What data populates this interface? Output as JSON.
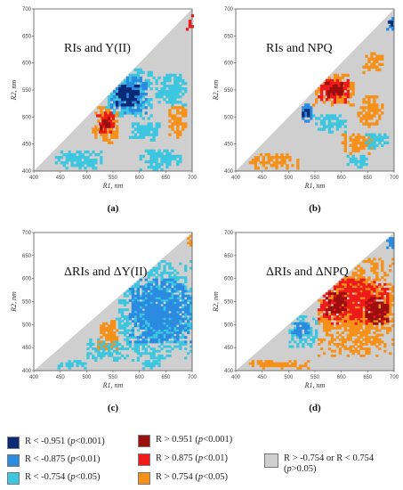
{
  "chart_data": [
    {
      "type": "heatmap",
      "panel_label": "(a)",
      "title": "RIs and Y(II)",
      "xlabel": "R1, nm",
      "ylabel": "R2, nm",
      "xlim": [
        400,
        700
      ],
      "ylim": [
        400,
        700
      ],
      "xticks": [
        400,
        450,
        500,
        550,
        600,
        650,
        700
      ],
      "yticks": [
        400,
        450,
        500,
        550,
        600,
        650,
        700
      ],
      "regions": [
        {
          "category": "neg3",
          "x": [
            555,
            598
          ],
          "y": [
            515,
            560
          ]
        },
        {
          "category": "neg2",
          "x": [
            545,
            612
          ],
          "y": [
            505,
            575
          ]
        },
        {
          "category": "neg1",
          "x": [
            530,
            625
          ],
          "y": [
            495,
            590
          ]
        },
        {
          "category": "neg1",
          "x": [
            600,
            680
          ],
          "y": [
            400,
            440
          ]
        },
        {
          "category": "neg1",
          "x": [
            440,
            530
          ],
          "y": [
            403,
            435
          ]
        },
        {
          "category": "neg1",
          "x": [
            625,
            690
          ],
          "y": [
            520,
            580
          ]
        },
        {
          "category": "neg1",
          "x": [
            580,
            640
          ],
          "y": [
            455,
            490
          ]
        },
        {
          "category": "pos1",
          "x": [
            510,
            560
          ],
          "y": [
            450,
            520
          ]
        },
        {
          "category": "pos2",
          "x": [
            518,
            552
          ],
          "y": [
            465,
            510
          ]
        },
        {
          "category": "pos3",
          "x": [
            525,
            545
          ],
          "y": [
            475,
            500
          ]
        },
        {
          "category": "pos1",
          "x": [
            655,
            690
          ],
          "y": [
            460,
            520
          ]
        },
        {
          "category": "pos2",
          "x": [
            688,
            700
          ],
          "y": [
            660,
            690
          ]
        },
        {
          "category": "pos3",
          "x": [
            692,
            699
          ],
          "y": [
            670,
            682
          ]
        }
      ]
    },
    {
      "type": "heatmap",
      "panel_label": "(b)",
      "title": "RIs and NPQ",
      "xlabel": "R1, nm",
      "ylabel": "R2, nm",
      "xlim": [
        400,
        700
      ],
      "ylim": [
        400,
        700
      ],
      "xticks": [
        400,
        450,
        500,
        550,
        600,
        650,
        700
      ],
      "yticks": [
        400,
        450,
        500,
        550,
        600,
        650,
        700
      ],
      "regions": [
        {
          "category": "pos1",
          "x": [
            545,
            625
          ],
          "y": [
            520,
            580
          ]
        },
        {
          "category": "pos2",
          "x": [
            555,
            615
          ],
          "y": [
            525,
            570
          ]
        },
        {
          "category": "pos3",
          "x": [
            568,
            600
          ],
          "y": [
            535,
            562
          ]
        },
        {
          "category": "pos1",
          "x": [
            630,
            680
          ],
          "y": [
            480,
            540
          ]
        },
        {
          "category": "pos1",
          "x": [
            420,
            520
          ],
          "y": [
            403,
            430
          ]
        },
        {
          "category": "pos1",
          "x": [
            600,
            660
          ],
          "y": [
            430,
            470
          ]
        },
        {
          "category": "pos1",
          "x": [
            640,
            680
          ],
          "y": [
            580,
            620
          ]
        },
        {
          "category": "neg2",
          "x": [
            520,
            545
          ],
          "y": [
            490,
            525
          ]
        },
        {
          "category": "neg3",
          "x": [
            525,
            540
          ],
          "y": [
            500,
            515
          ]
        },
        {
          "category": "neg1",
          "x": [
            545,
            610
          ],
          "y": [
            470,
            505
          ]
        },
        {
          "category": "neg1",
          "x": [
            640,
            690
          ],
          "y": [
            440,
            470
          ]
        },
        {
          "category": "neg2",
          "x": [
            685,
            700
          ],
          "y": [
            655,
            682
          ]
        },
        {
          "category": "neg3",
          "x": [
            688,
            696
          ],
          "y": [
            668,
            678
          ]
        },
        {
          "category": "neg1",
          "x": [
            610,
            650
          ],
          "y": [
            405,
            430
          ]
        }
      ]
    },
    {
      "type": "heatmap",
      "panel_label": "(c)",
      "title": "ΔRIs and ΔY(II)",
      "xlabel": "R1, nm",
      "ylabel": "R2, nm",
      "xlim": [
        400,
        700
      ],
      "ylim": [
        400,
        700
      ],
      "xticks": [
        400,
        450,
        500,
        550,
        600,
        650,
        700
      ],
      "yticks": [
        400,
        450,
        500,
        550,
        600,
        650,
        700
      ],
      "regions": [
        {
          "category": "neg1",
          "x": [
            555,
            700
          ],
          "y": [
            420,
            640
          ]
        },
        {
          "category": "neg2",
          "x": [
            580,
            700
          ],
          "y": [
            460,
            600
          ]
        },
        {
          "category": "neg1",
          "x": [
            500,
            560
          ],
          "y": [
            420,
            470
          ]
        },
        {
          "category": "neg1",
          "x": [
            440,
            500
          ],
          "y": [
            403,
            420
          ]
        },
        {
          "category": "pos1",
          "x": [
            520,
            560
          ],
          "y": [
            445,
            510
          ]
        },
        {
          "category": "pos1",
          "x": [
            690,
            700
          ],
          "y": [
            665,
            695
          ]
        },
        {
          "category": "neg1",
          "x": [
            600,
            640
          ],
          "y": [
            403,
            420
          ]
        }
      ]
    },
    {
      "type": "heatmap",
      "panel_label": "(d)",
      "title": "ΔRIs and ΔNPQ",
      "xlabel": "R1, nm",
      "ylabel": "R2, nm",
      "xlim": [
        400,
        700
      ],
      "ylim": [
        400,
        700
      ],
      "xticks": [
        400,
        450,
        500,
        550,
        600,
        650,
        700
      ],
      "yticks": [
        400,
        450,
        500,
        550,
        600,
        650,
        700
      ],
      "regions": [
        {
          "category": "pos1",
          "x": [
            555,
            700
          ],
          "y": [
            430,
            650
          ]
        },
        {
          "category": "pos2",
          "x": [
            555,
            690
          ],
          "y": [
            500,
            600
          ]
        },
        {
          "category": "pos3",
          "x": [
            570,
            610
          ],
          "y": [
            520,
            570
          ]
        },
        {
          "category": "pos3",
          "x": [
            640,
            690
          ],
          "y": [
            500,
            560
          ]
        },
        {
          "category": "neg1",
          "x": [
            500,
            555
          ],
          "y": [
            450,
            520
          ]
        },
        {
          "category": "neg2",
          "x": [
            505,
            540
          ],
          "y": [
            470,
            505
          ]
        },
        {
          "category": "pos1",
          "x": [
            420,
            540
          ],
          "y": [
            403,
            420
          ]
        },
        {
          "category": "neg2",
          "x": [
            685,
            700
          ],
          "y": [
            660,
            690
          ]
        },
        {
          "category": "neg3",
          "x": [
            690,
            697
          ],
          "y": [
            670,
            680
          ]
        }
      ]
    }
  ],
  "legend": {
    "colors": {
      "neg3": "#0a2a78",
      "neg2": "#2b8be0",
      "neg1": "#3cc6df",
      "pos3": "#9c0f0f",
      "pos2": "#ee1b1b",
      "pos1": "#f59018",
      "gray": "#cfcfcf"
    },
    "neg3": {
      "text": "R < -0.951 (",
      "p": "p",
      "rest": "<0.001)"
    },
    "neg2": {
      "text": "R < -0.875 (",
      "p": "p",
      "rest": "<0.01)"
    },
    "neg1": {
      "text": "R < -0.754 (",
      "p": "p",
      "rest": "<0.05)"
    },
    "pos3": {
      "text": "R > 0.951 (",
      "p": "p",
      "rest": "<0.001)"
    },
    "pos2": {
      "text": "R > 0.875 (",
      "p": "p",
      "rest": "<0.01)"
    },
    "pos1": {
      "text": "R > 0.754 (",
      "p": "p",
      "rest": "<0.05)"
    },
    "gray": {
      "text": "R > -0.754 or R < 0.754",
      "p": "p",
      "rest": ">0.05)",
      "open": "("
    }
  }
}
